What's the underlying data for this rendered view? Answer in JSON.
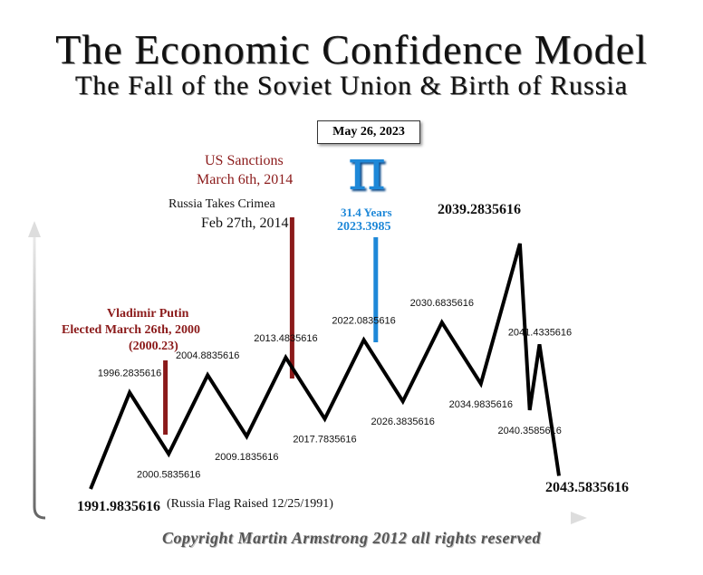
{
  "title": "The Economic Confidence Model",
  "subtitle": "The Fall of the Soviet Union & Birth of Russia",
  "copyright": "Copyright Martin Armstrong 2012 all rights reserved",
  "annotations": {
    "pi_date": "May 26, 2023",
    "pi_symbol": "π",
    "pi_years": "31.4 Years",
    "pi_value": "2023.3985",
    "putin_line1": "Vladimir Putin",
    "putin_line2": "Elected March 26th, 2000",
    "putin_line3": "(2000.23)",
    "sanctions_line1": "US Sanctions",
    "sanctions_line2": "March 6th, 2014",
    "crimea_line1": "Russia Takes Crimea",
    "crimea_line2": "Feb 27th, 2014",
    "flag_note": "(Russia Flag Raised 12/25/1991)"
  },
  "colors": {
    "line": "#000000",
    "event_marker": "#8b1a1a",
    "pi_marker": "#1e88d8"
  },
  "chart_data": {
    "type": "line",
    "title": "The Economic Confidence Model",
    "subtitle": "The Fall of the Soviet Union & Birth of Russia",
    "xlabel": "",
    "ylabel": "",
    "grid": false,
    "points": [
      {
        "x": 1991.9835616,
        "y": 0,
        "label": "1991.9835616"
      },
      {
        "x": 1996.2835616,
        "y": 4.4,
        "label": "1996.2835616"
      },
      {
        "x": 2000.5835616,
        "y": 1.6,
        "label": "2000.5835616"
      },
      {
        "x": 2004.8835616,
        "y": 5.2,
        "label": "2004.8835616"
      },
      {
        "x": 2009.1835616,
        "y": 2.4,
        "label": "2009.1835616"
      },
      {
        "x": 2013.4835616,
        "y": 6.0,
        "label": "2013.4835616"
      },
      {
        "x": 2017.7835616,
        "y": 3.2,
        "label": "2017.7835616"
      },
      {
        "x": 2022.0835616,
        "y": 6.8,
        "label": "2022.0835616"
      },
      {
        "x": 2026.3835616,
        "y": 4.0,
        "label": "2026.3835616"
      },
      {
        "x": 2030.6835616,
        "y": 7.6,
        "label": "2030.6835616"
      },
      {
        "x": 2034.9835616,
        "y": 4.8,
        "label": "2034.9835616"
      },
      {
        "x": 2039.2835616,
        "y": 11.2,
        "label": "2039.2835616"
      },
      {
        "x": 2040.3585616,
        "y": 3.6,
        "label": "2040.3585616"
      },
      {
        "x": 2041.4335616,
        "y": 6.6,
        "label": "2041.4335616"
      },
      {
        "x": 2043.5835616,
        "y": 0.6,
        "label": "2043.5835616"
      }
    ],
    "markers": [
      {
        "x": 2000.23,
        "name": "Vladimir Putin Elected March 26th, 2000",
        "color": "#8b1a1a"
      },
      {
        "x": 2014.18,
        "name": "US Sanctions March 6th, 2014",
        "color": "#8b1a1a"
      },
      {
        "x": 2023.3985,
        "name": "31.4 Years 2023.3985",
        "color": "#1e88d8"
      }
    ]
  }
}
